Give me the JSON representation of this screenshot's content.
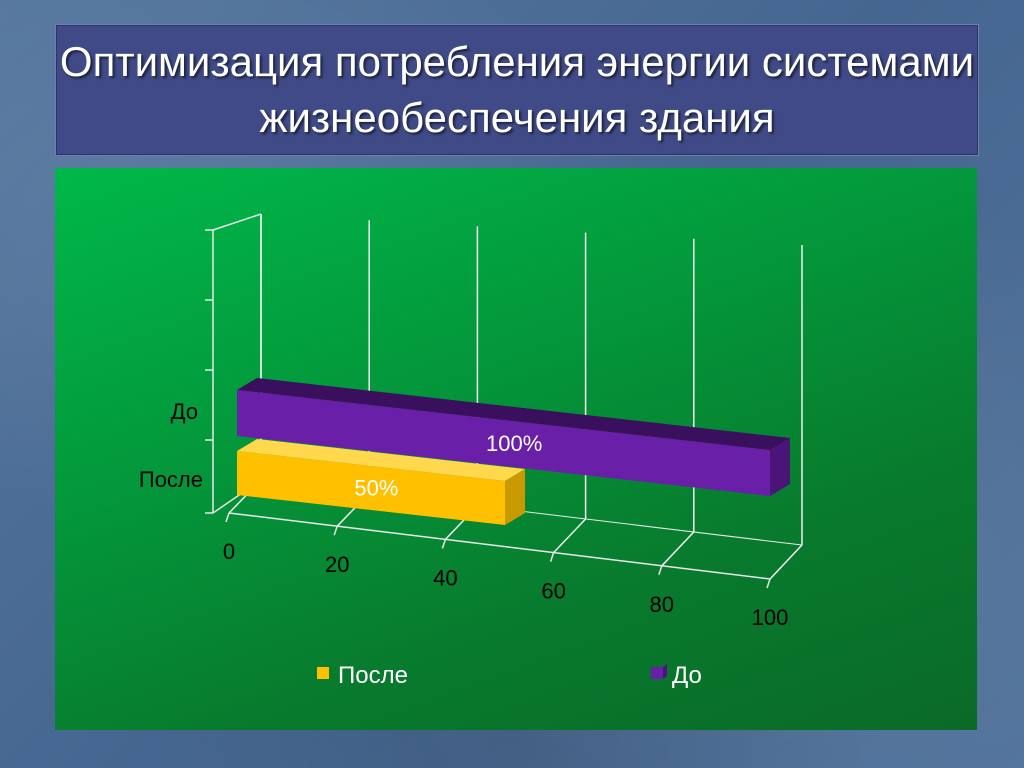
{
  "slide": {
    "title": "Оптимизация потребления энергии системами жизнеобеспечения здания"
  },
  "chart_data": {
    "type": "bar",
    "orientation": "horizontal",
    "style": "3d",
    "categories": [
      "После",
      "До"
    ],
    "series": [
      {
        "name": "После",
        "category": "После",
        "value": 50,
        "data_label": "50%",
        "color": "#ffc000",
        "side_color": "#c99a00",
        "top_color": "#ffd84d"
      },
      {
        "name": "До",
        "category": "До",
        "value": 100,
        "data_label": "100%",
        "color": "#6a1fa8",
        "side_color": "#4a1478",
        "top_color": "#3a0f5e"
      }
    ],
    "x_ticks": [
      "0",
      "20",
      "40",
      "60",
      "80",
      "100"
    ],
    "xlim": [
      0,
      100
    ],
    "grid": true,
    "legend": {
      "position": "bottom",
      "items": [
        "После",
        "До"
      ]
    },
    "colors": {
      "axis": "#e8e8e8",
      "gridline": "#f0f0f0"
    }
  }
}
